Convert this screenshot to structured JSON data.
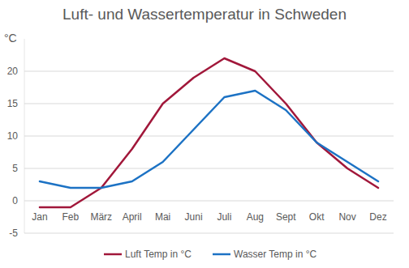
{
  "chart_data": {
    "type": "line",
    "title": "Luft- und Wassertemperatur in Schweden",
    "y_label": "°C",
    "categories": [
      "Jan",
      "Feb",
      "März",
      "April",
      "Mai",
      "Juni",
      "Juli",
      "Aug",
      "Sept",
      "Okt",
      "Nov",
      "Dez"
    ],
    "series": [
      {
        "name": "Luft Temp in °C",
        "color": "#a1173a",
        "values": [
          -1,
          -1,
          2,
          8,
          15,
          19,
          22,
          20,
          15,
          9,
          5,
          2
        ]
      },
      {
        "name": "Wasser Temp in °C",
        "color": "#1c72c4",
        "values": [
          3,
          2,
          2,
          3,
          6,
          11,
          16,
          17,
          14,
          9,
          6,
          3
        ]
      }
    ],
    "ylim": [
      -5,
      25
    ],
    "yticks": [
      -5,
      0,
      5,
      10,
      15,
      20
    ],
    "grid": true,
    "legend": "bottom"
  }
}
